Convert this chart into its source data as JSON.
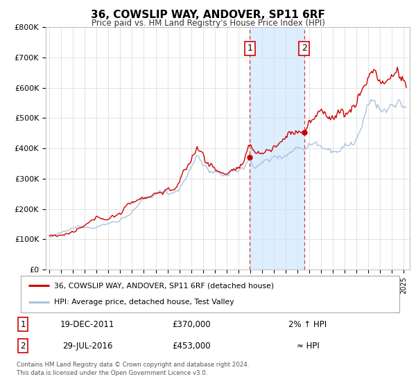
{
  "title": "36, COWSLIP WAY, ANDOVER, SP11 6RF",
  "subtitle": "Price paid vs. HM Land Registry's House Price Index (HPI)",
  "ylim": [
    0,
    800000
  ],
  "yticks": [
    0,
    100000,
    200000,
    300000,
    400000,
    500000,
    600000,
    700000,
    800000
  ],
  "ytick_labels": [
    "£0",
    "£100K",
    "£200K",
    "£300K",
    "£400K",
    "£500K",
    "£600K",
    "£700K",
    "£800K"
  ],
  "xlim_start": 1994.7,
  "xlim_end": 2025.5,
  "hpi_color": "#aac4e0",
  "price_color": "#cc0000",
  "marker_color": "#cc0000",
  "shade_color": "#ddeeff",
  "event1_x": 2011.97,
  "event1_y": 370000,
  "event2_x": 2016.57,
  "event2_y": 453000,
  "legend_label1": "36, COWSLIP WAY, ANDOVER, SP11 6RF (detached house)",
  "legend_label2": "HPI: Average price, detached house, Test Valley",
  "table_row1_num": "1",
  "table_row1_date": "19-DEC-2011",
  "table_row1_price": "£370,000",
  "table_row1_rel": "2% ↑ HPI",
  "table_row2_num": "2",
  "table_row2_date": "29-JUL-2016",
  "table_row2_price": "£453,000",
  "table_row2_rel": "≈ HPI",
  "footnote": "Contains HM Land Registry data © Crown copyright and database right 2024.\nThis data is licensed under the Open Government Licence v3.0.",
  "background_color": "#ffffff"
}
